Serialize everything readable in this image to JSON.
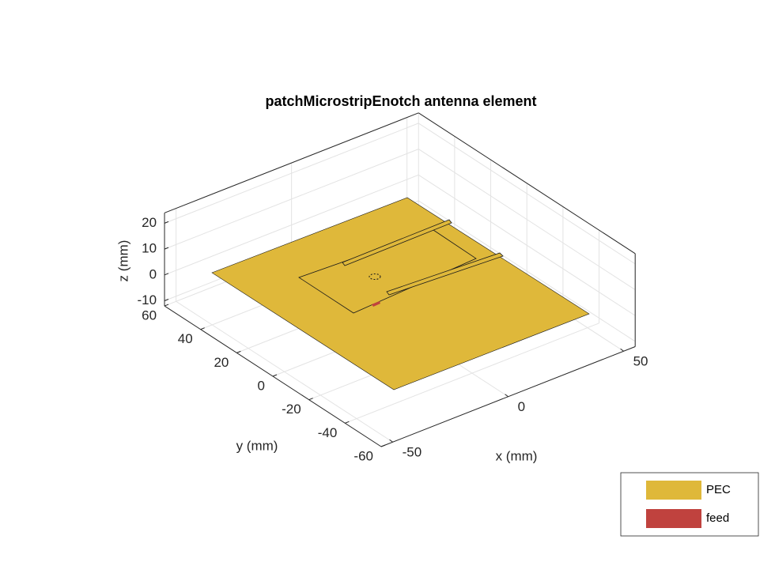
{
  "chart_data": {
    "type": "surface3d",
    "title": "patchMicrostripEnotch antenna element",
    "xlabel": "x (mm)",
    "ylabel": "y (mm)",
    "zlabel": "z (mm)",
    "xlim": [
      -55,
      55
    ],
    "ylim": [
      -60,
      60
    ],
    "zlim": [
      -12,
      24
    ],
    "xticks": [
      -50,
      0,
      50
    ],
    "yticks": [
      -60,
      -40,
      -20,
      0,
      20,
      40,
      60
    ],
    "zticks": [
      -10,
      0,
      10,
      20
    ],
    "grid": true,
    "legend": {
      "position": "southeast",
      "entries": [
        {
          "name": "PEC",
          "color": "#dfb83a"
        },
        {
          "name": "feed",
          "color": "#c0423e"
        }
      ]
    }
  }
}
